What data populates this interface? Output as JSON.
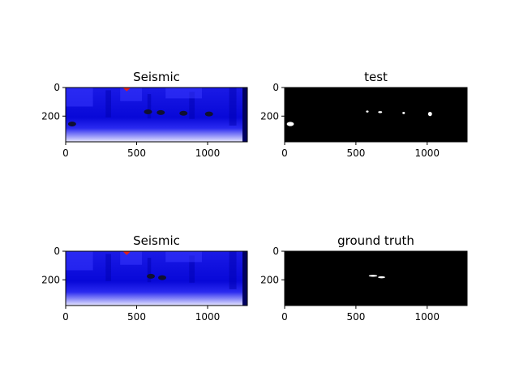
{
  "figure": {
    "background": "#ffffff"
  },
  "chart_data": [
    {
      "type": "heatmap",
      "title": "Seismic",
      "kind": "seismic",
      "xlim": [
        0,
        1280
      ],
      "ylim": [
        380,
        0
      ],
      "xticks": [
        0,
        500,
        1000
      ],
      "yticks": [
        0,
        200
      ],
      "colormap": "seismic",
      "features": [
        {
          "shape": "dark blob",
          "x": 45,
          "y": 255
        },
        {
          "shape": "dark blob",
          "x": 580,
          "y": 170
        },
        {
          "shape": "dark blob",
          "x": 670,
          "y": 175
        },
        {
          "shape": "dark blob",
          "x": 830,
          "y": 180
        },
        {
          "shape": "dark blob",
          "x": 1010,
          "y": 185
        }
      ],
      "red_mark": {
        "x": 430,
        "y": 10
      }
    },
    {
      "type": "heatmap",
      "title": "test",
      "kind": "mask",
      "xlim": [
        0,
        1280
      ],
      "ylim": [
        380,
        0
      ],
      "xticks": [
        0,
        500,
        1000
      ],
      "yticks": [
        0,
        200
      ],
      "colormap": "gray",
      "blobs": [
        {
          "x": 40,
          "y": 255,
          "w": 50,
          "h": 30
        },
        {
          "x": 580,
          "y": 168,
          "w": 18,
          "h": 10
        },
        {
          "x": 670,
          "y": 172,
          "w": 28,
          "h": 10
        },
        {
          "x": 835,
          "y": 178,
          "w": 18,
          "h": 16
        },
        {
          "x": 1020,
          "y": 185,
          "w": 28,
          "h": 30
        }
      ]
    },
    {
      "type": "heatmap",
      "title": "Seismic",
      "kind": "seismic",
      "xlim": [
        0,
        1280
      ],
      "ylim": [
        380,
        0
      ],
      "xticks": [
        0,
        500,
        1000
      ],
      "yticks": [
        0,
        200
      ],
      "colormap": "seismic",
      "features": [
        {
          "shape": "dark blob",
          "x": 600,
          "y": 175
        },
        {
          "shape": "dark blob",
          "x": 680,
          "y": 185
        }
      ],
      "red_mark": {
        "x": 430,
        "y": 10
      }
    },
    {
      "type": "heatmap",
      "title": "ground truth",
      "kind": "mask",
      "xlim": [
        0,
        1280
      ],
      "ylim": [
        380,
        0
      ],
      "xticks": [
        0,
        500,
        1000
      ],
      "yticks": [
        0,
        200
      ],
      "colormap": "gray",
      "blobs": [
        {
          "x": 620,
          "y": 172,
          "w": 60,
          "h": 12
        },
        {
          "x": 680,
          "y": 182,
          "w": 50,
          "h": 14
        }
      ]
    }
  ]
}
